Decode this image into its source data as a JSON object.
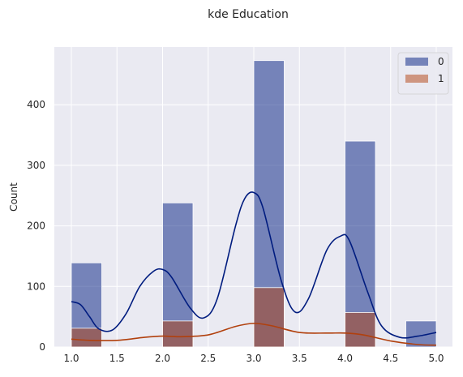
{
  "chart_data": {
    "type": "bar",
    "title": "kde Education",
    "xlabel": "",
    "ylabel": "Count",
    "xlim": [
      0.8,
      5.2
    ],
    "ylim": [
      0,
      490
    ],
    "x_ticks": [
      "1.0",
      "1.5",
      "2.0",
      "2.5",
      "3.0",
      "3.5",
      "4.0",
      "4.5",
      "5.0"
    ],
    "y_ticks": [
      "0",
      "100",
      "200",
      "300",
      "400"
    ],
    "grid": true,
    "legend_position": "top-right",
    "bin_width": 0.3333,
    "series": [
      {
        "name": "0",
        "color": "#001c7f",
        "bins": [
          {
            "x0": 1.0,
            "x1": 1.3333,
            "value": 139
          },
          {
            "x0": 2.0,
            "x1": 2.3333,
            "value": 238
          },
          {
            "x0": 3.0,
            "x1": 3.3333,
            "value": 473
          },
          {
            "x0": 4.0,
            "x1": 4.3333,
            "value": 340
          },
          {
            "x0": 4.6667,
            "x1": 5.0,
            "value": 43
          }
        ],
        "kde": [
          [
            1.0,
            75
          ],
          [
            1.1,
            70
          ],
          [
            1.2,
            50
          ],
          [
            1.3,
            30
          ],
          [
            1.45,
            28
          ],
          [
            1.6,
            55
          ],
          [
            1.75,
            100
          ],
          [
            1.9,
            125
          ],
          [
            2.0,
            128
          ],
          [
            2.1,
            115
          ],
          [
            2.3,
            65
          ],
          [
            2.45,
            48
          ],
          [
            2.6,
            80
          ],
          [
            2.8,
            200
          ],
          [
            2.9,
            245
          ],
          [
            3.0,
            255
          ],
          [
            3.1,
            230
          ],
          [
            3.3,
            110
          ],
          [
            3.45,
            58
          ],
          [
            3.6,
            80
          ],
          [
            3.8,
            160
          ],
          [
            3.95,
            183
          ],
          [
            4.05,
            175
          ],
          [
            4.25,
            90
          ],
          [
            4.4,
            35
          ],
          [
            4.6,
            16
          ],
          [
            4.8,
            18
          ],
          [
            5.0,
            24
          ]
        ]
      },
      {
        "name": "1",
        "color": "#b1400d",
        "bins": [
          {
            "x0": 1.0,
            "x1": 1.3333,
            "value": 31
          },
          {
            "x0": 2.0,
            "x1": 2.3333,
            "value": 43
          },
          {
            "x0": 3.0,
            "x1": 3.3333,
            "value": 98
          },
          {
            "x0": 4.0,
            "x1": 4.3333,
            "value": 57
          },
          {
            "x0": 4.6667,
            "x1": 5.0,
            "value": 0
          }
        ],
        "kde": [
          [
            1.0,
            13
          ],
          [
            1.2,
            11
          ],
          [
            1.5,
            11
          ],
          [
            1.8,
            16
          ],
          [
            2.0,
            18
          ],
          [
            2.2,
            17
          ],
          [
            2.5,
            20
          ],
          [
            2.8,
            34
          ],
          [
            3.0,
            39
          ],
          [
            3.2,
            35
          ],
          [
            3.5,
            24
          ],
          [
            3.8,
            23
          ],
          [
            4.0,
            23
          ],
          [
            4.2,
            20
          ],
          [
            4.5,
            10
          ],
          [
            4.8,
            4
          ],
          [
            5.0,
            3
          ]
        ]
      }
    ]
  }
}
